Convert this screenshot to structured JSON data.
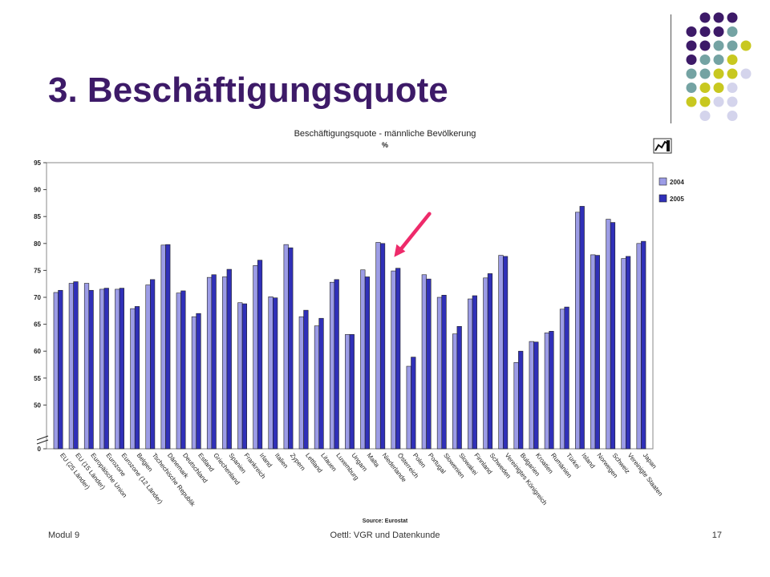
{
  "slide": {
    "title": "3. Beschäftigungsquote",
    "footer_left": "Modul 9",
    "footer_center": "Oettl: VGR und Datenkunde",
    "page_number": "17"
  },
  "colors": {
    "title": "#3d1a68",
    "series_2004": "#9c9ce6",
    "series_2005": "#3030b8",
    "arrow": "#ee2a6a",
    "dot_purple": "#3d1a68",
    "dot_teal": "#74a3a3",
    "dot_yellow": "#c8c820",
    "dot_lavender": "#d4d4ec"
  },
  "chart_data": {
    "type": "bar",
    "title": "Beschäftigungsquote - männliche Bevölkerung",
    "subtitle": "%",
    "source": "Source: Eurostat",
    "ylim": [
      0,
      95
    ],
    "y_ticks": [
      0,
      50,
      55,
      60,
      65,
      70,
      75,
      80,
      85,
      90,
      95
    ],
    "y_axis_break": true,
    "grid": false,
    "legend_position": "right",
    "categories": [
      "EU (25 Länder)",
      "EU (15 Länder)",
      "Europäische Union",
      "Eurozone",
      "Eurozone (12 Länder)",
      "Belgien",
      "Tschechische Republik",
      "Dänemark",
      "Deutschland",
      "Estland",
      "Griechenland",
      "Spanien",
      "Frankreich",
      "Irland",
      "Italien",
      "Zypern",
      "Lettland",
      "Litauen",
      "Luxemburg",
      "Ungarn",
      "Malta",
      "Niederlande",
      "Österreich",
      "Polen",
      "Portugal",
      "Slowenien",
      "Slowakei",
      "Finnland",
      "Schweden",
      "Vereinigtes Königreich",
      "Bulgarien",
      "Kroatien",
      "Rumänien",
      "Türkei",
      "Island",
      "Norwegen",
      "Schweiz",
      "Vereinigte Staaten",
      "Japan"
    ],
    "series": [
      {
        "name": "2004",
        "values": [
          70.9,
          72.6,
          72.6,
          71.5,
          71.5,
          67.9,
          72.3,
          79.7,
          70.8,
          66.4,
          73.7,
          73.8,
          69.0,
          75.9,
          70.1,
          79.8,
          66.4,
          64.7,
          72.8,
          63.1,
          75.1,
          80.2,
          74.9,
          57.2,
          74.2,
          70.0,
          63.2,
          69.7,
          73.6,
          77.8,
          57.9,
          61.8,
          63.4,
          67.8,
          85.8,
          77.9,
          84.5,
          77.2,
          80.0
        ]
      },
      {
        "name": "2005",
        "values": [
          71.3,
          72.9,
          71.3,
          71.7,
          71.7,
          68.3,
          73.3,
          79.8,
          71.2,
          67.0,
          74.2,
          75.2,
          68.8,
          76.9,
          69.9,
          79.2,
          67.6,
          66.1,
          73.3,
          63.1,
          73.8,
          80.0,
          75.4,
          58.9,
          73.4,
          70.4,
          64.6,
          70.3,
          74.4,
          77.6,
          60.0,
          61.7,
          63.7,
          68.2,
          86.9,
          77.8,
          83.9,
          77.6,
          80.4
        ]
      }
    ],
    "highlighted_category": "Österreich"
  }
}
